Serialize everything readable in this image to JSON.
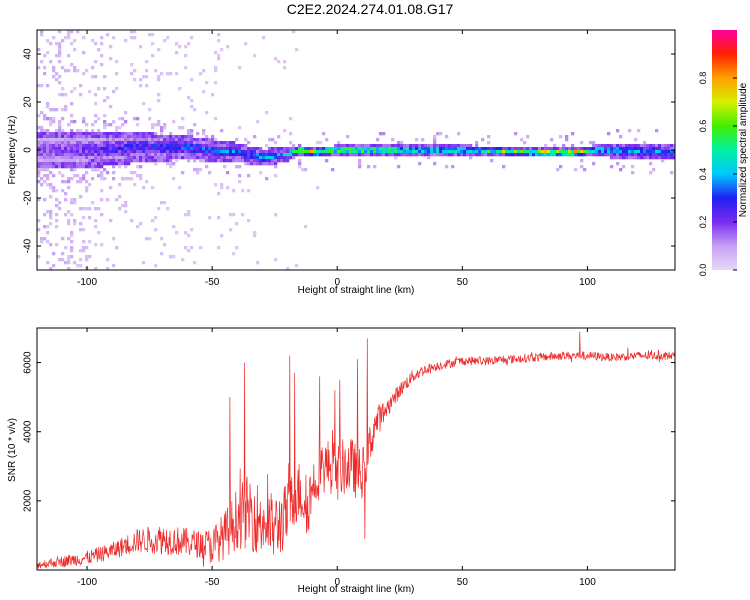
{
  "figure_title": "C2E2.2024.274.01.08.G17",
  "chart_data": [
    {
      "type": "heatmap",
      "xlabel": "Height of straight line (km)",
      "ylabel": "Frequency (Hz)",
      "xlim": [
        -120,
        135
      ],
      "ylim": [
        -50,
        50
      ],
      "xticks": [
        -100,
        -50,
        0,
        50,
        100
      ],
      "yticks": [
        -40,
        -20,
        0,
        20,
        40
      ],
      "colorbar": {
        "label": "Normalized spectral amplitude",
        "range": [
          0.0,
          1.0
        ],
        "ticks": [
          "0.0",
          "0.2",
          "0.4",
          "0.6",
          "0.8"
        ],
        "tick_values": [
          0.0,
          0.2,
          0.4,
          0.6,
          0.8
        ],
        "colormap": [
          "#e8d8f8",
          "#c7a1f3",
          "#7a2cf0",
          "#2020f0",
          "#00c8ff",
          "#00f0a0",
          "#40f000",
          "#d8f000",
          "#ffa000",
          "#ff2000",
          "#ff00a0"
        ]
      },
      "band_center_hz": [
        [
          -115,
          0
        ],
        [
          -100,
          0
        ],
        [
          -80,
          1
        ],
        [
          -60,
          1
        ],
        [
          -40,
          -1
        ],
        [
          -30,
          -3
        ],
        [
          -20,
          -2
        ],
        [
          -15,
          0
        ],
        [
          -10,
          -1
        ],
        [
          0,
          0
        ],
        [
          20,
          0
        ],
        [
          50,
          0
        ],
        [
          80,
          -1
        ],
        [
          95,
          -1
        ],
        [
          105,
          0
        ],
        [
          135,
          -1
        ]
      ],
      "band_halfwidth_hz": [
        [
          -115,
          8
        ],
        [
          -90,
          7
        ],
        [
          -60,
          5
        ],
        [
          -40,
          4
        ],
        [
          -20,
          3
        ],
        [
          -15,
          2
        ],
        [
          0,
          2
        ],
        [
          50,
          2
        ],
        [
          100,
          2
        ],
        [
          105,
          3
        ],
        [
          135,
          3
        ]
      ],
      "peak_amplitude": [
        [
          -115,
          0.22
        ],
        [
          -90,
          0.3
        ],
        [
          -60,
          0.38
        ],
        [
          -40,
          0.42
        ],
        [
          -20,
          0.48
        ],
        [
          -12,
          0.9
        ],
        [
          -5,
          0.85
        ],
        [
          0,
          0.8
        ],
        [
          10,
          0.85
        ],
        [
          20,
          0.7
        ],
        [
          50,
          0.6
        ],
        [
          80,
          0.8
        ],
        [
          95,
          0.95
        ],
        [
          102,
          0.55
        ],
        [
          135,
          0.45
        ]
      ],
      "noise_level": [
        [
          -120,
          0.6
        ],
        [
          -100,
          0.35
        ],
        [
          -80,
          0.2
        ],
        [
          -50,
          0.1
        ],
        [
          -20,
          0.05
        ],
        [
          0,
          0.0
        ],
        [
          135,
          0.0
        ]
      ]
    },
    {
      "type": "line",
      "xlabel": "Height of straight line (km)",
      "ylabel": "SNR (10 * v/v)",
      "xlim": [
        -120,
        135
      ],
      "ylim": [
        0,
        7000
      ],
      "xticks": [
        -100,
        -50,
        0,
        50,
        100
      ],
      "yticks": [
        2000,
        4000,
        6000
      ],
      "series": [
        {
          "color": "#ee2a2a",
          "trend": [
            [
              -120,
              150
            ],
            [
              -110,
              250
            ],
            [
              -100,
              350
            ],
            [
              -90,
              550
            ],
            [
              -80,
              850
            ],
            [
              -70,
              900
            ],
            [
              -60,
              800
            ],
            [
              -50,
              700
            ],
            [
              -45,
              1000
            ],
            [
              -40,
              1500
            ],
            [
              -35,
              1700
            ],
            [
              -30,
              1400
            ],
            [
              -25,
              1200
            ],
            [
              -20,
              1600
            ],
            [
              -17,
              2100
            ],
            [
              -15,
              2300
            ],
            [
              -12,
              1800
            ],
            [
              -10,
              2400
            ],
            [
              -7,
              2900
            ],
            [
              -5,
              3000
            ],
            [
              -2,
              3000
            ],
            [
              0,
              2800
            ],
            [
              3,
              3000
            ],
            [
              6,
              3000
            ],
            [
              8,
              2800
            ],
            [
              10,
              2800
            ],
            [
              12,
              3300
            ],
            [
              15,
              4200
            ],
            [
              20,
              4700
            ],
            [
              25,
              5200
            ],
            [
              30,
              5600
            ],
            [
              35,
              5800
            ],
            [
              40,
              5900
            ],
            [
              50,
              6050
            ],
            [
              60,
              6050
            ],
            [
              70,
              6100
            ],
            [
              80,
              6150
            ],
            [
              90,
              6200
            ],
            [
              100,
              6200
            ],
            [
              110,
              6150
            ],
            [
              120,
              6200
            ],
            [
              135,
              6200
            ]
          ],
          "noise_amplitude": [
            [
              -120,
              120
            ],
            [
              -90,
              250
            ],
            [
              -70,
              450
            ],
            [
              -55,
              400
            ],
            [
              -45,
              700
            ],
            [
              -35,
              1100
            ],
            [
              -25,
              1000
            ],
            [
              -15,
              900
            ],
            [
              -5,
              800
            ],
            [
              5,
              850
            ],
            [
              12,
              700
            ],
            [
              20,
              250
            ],
            [
              40,
              130
            ],
            [
              135,
              120
            ]
          ],
          "peaks": [
            [
              -43,
              5000
            ],
            [
              -37,
              6000
            ],
            [
              -19,
              6200
            ],
            [
              -17,
              5700
            ],
            [
              -7,
              5600
            ],
            [
              -1,
              5200
            ],
            [
              1,
              5500
            ],
            [
              8,
              6100
            ],
            [
              12,
              6700
            ],
            [
              11,
              900
            ],
            [
              97,
              6900
            ]
          ]
        }
      ]
    }
  ]
}
